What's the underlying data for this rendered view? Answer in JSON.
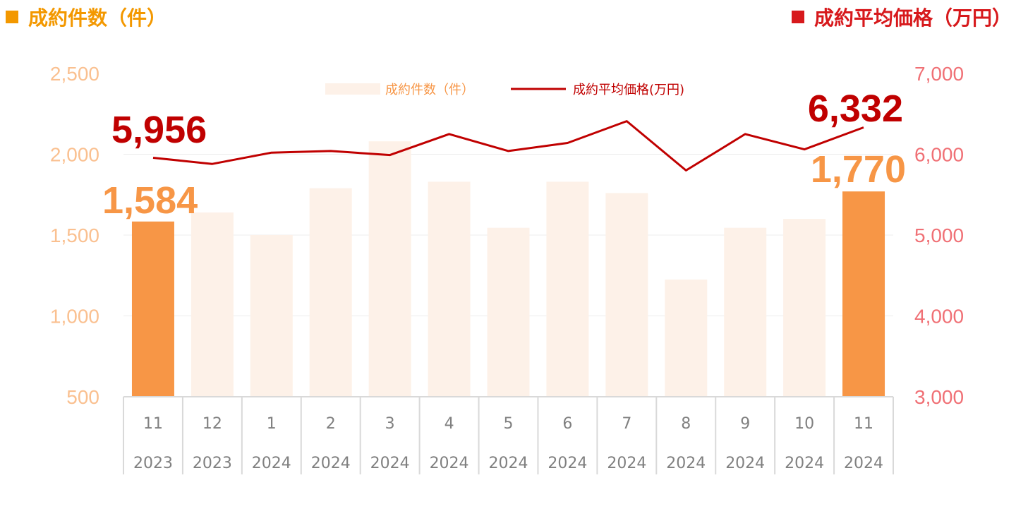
{
  "legend": {
    "count_label": "成約件数（件）",
    "price_label": "成約平均価格（万円）"
  },
  "chart_data": {
    "type": "bar+line",
    "categories": [
      [
        "11",
        "2023"
      ],
      [
        "12",
        "2023"
      ],
      [
        "1",
        "2024"
      ],
      [
        "2",
        "2024"
      ],
      [
        "3",
        "2024"
      ],
      [
        "4",
        "2024"
      ],
      [
        "5",
        "2024"
      ],
      [
        "6",
        "2024"
      ],
      [
        "7",
        "2024"
      ],
      [
        "8",
        "2024"
      ],
      [
        "9",
        "2024"
      ],
      [
        "10",
        "2024"
      ],
      [
        "11",
        "2024"
      ]
    ],
    "series": [
      {
        "name": "成約件数（件）",
        "type": "bar",
        "axis": "left",
        "values": [
          1584,
          1640,
          1500,
          1790,
          2080,
          1830,
          1545,
          1830,
          1760,
          1225,
          1545,
          1600,
          1770
        ],
        "highlight": [
          0,
          12
        ]
      },
      {
        "name": "成約平均価格(万円)",
        "type": "line",
        "axis": "right",
        "values": [
          5956,
          5880,
          6020,
          6040,
          5990,
          6250,
          6040,
          6140,
          6410,
          5800,
          6250,
          6060,
          6332
        ]
      }
    ],
    "left_axis": {
      "ylim": [
        500,
        2500
      ],
      "ticks": [
        "2,500",
        "2,000",
        "1,500",
        "1,000",
        "500"
      ]
    },
    "right_axis": {
      "ylim": [
        3000,
        7000
      ],
      "ticks": [
        "7,000",
        "6,000",
        "5,000",
        "4,000",
        "3,000"
      ]
    },
    "callouts": {
      "count_first": "1,584",
      "count_last": "1,770",
      "price_first": "5,956",
      "price_last": "6,332"
    },
    "gridlines": true,
    "colors": {
      "bar_highlight": "#f79646",
      "bar_muted": "#fdf1e8",
      "line": "#c00000",
      "left_tick": "#fac090",
      "right_tick": "#f07075",
      "count_legend": "#f39800",
      "price_legend": "#d7191c"
    }
  }
}
